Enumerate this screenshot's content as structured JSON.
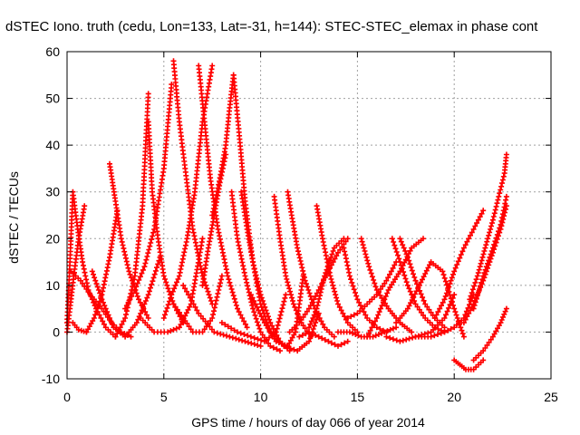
{
  "chart_data": {
    "type": "scatter",
    "title": "dSTEC Iono. truth (cedu, Lon=133, Lat=-31, h=144): STEC-STEC_elemax in phase cont",
    "xlabel": "GPS time / hours of day 066 of year 2014",
    "ylabel": "dSTEC  / TECUs",
    "xlim": [
      0,
      25
    ],
    "ylim": [
      -10,
      60
    ],
    "xticks": [
      0,
      5,
      10,
      15,
      20,
      25
    ],
    "yticks": [
      -10,
      0,
      10,
      20,
      30,
      40,
      50,
      60
    ],
    "grid": true,
    "marker": "+",
    "color": "#ff0000",
    "arcs": [
      {
        "x": [
          0.0,
          0.15,
          0.35,
          0.6,
          0.9
        ],
        "y": [
          0,
          5,
          12,
          20,
          27
        ]
      },
      {
        "x": [
          0.0,
          0.15,
          0.3,
          0.55,
          0.8,
          1.1,
          1.5,
          2.0,
          2.5
        ],
        "y": [
          2,
          15,
          30,
          22,
          15,
          9,
          5,
          1,
          -1
        ]
      },
      {
        "x": [
          0.2,
          0.7,
          1.2,
          1.8,
          2.3,
          2.8,
          3.3
        ],
        "y": [
          13,
          11,
          8,
          5,
          2,
          0,
          -1
        ]
      },
      {
        "x": [
          0.3,
          0.6,
          1.0
        ],
        "y": [
          2,
          0.5,
          0
        ]
      },
      {
        "x": [
          2.2,
          2.35,
          2.5,
          2.8,
          3.2,
          3.7,
          4.2
        ],
        "y": [
          36,
          32,
          28,
          20,
          13,
          7,
          3
        ]
      },
      {
        "x": [
          1.0,
          1.4,
          1.8,
          2.2,
          2.6
        ],
        "y": [
          0,
          3,
          8,
          16,
          26
        ]
      },
      {
        "x": [
          1.3,
          1.8,
          2.4,
          3.0,
          3.6,
          4.2,
          4.8
        ],
        "y": [
          13,
          7,
          1,
          -1,
          2,
          8,
          16
        ]
      },
      {
        "x": [
          2.5,
          3.0,
          3.5,
          3.9,
          4.2
        ],
        "y": [
          -1,
          3,
          12,
          27,
          51
        ]
      },
      {
        "x": [
          4.2,
          4.4,
          4.7,
          5.0,
          5.5,
          6.0
        ],
        "y": [
          45,
          30,
          20,
          12,
          6,
          2
        ]
      },
      {
        "x": [
          3.0,
          3.5,
          4.0,
          4.5,
          5.0,
          5.4
        ],
        "y": [
          5,
          9,
          14,
          22,
          35,
          53
        ]
      },
      {
        "x": [
          5.5,
          5.8,
          6.1,
          6.5,
          7.0,
          7.5
        ],
        "y": [
          58,
          45,
          35,
          22,
          12,
          6
        ]
      },
      {
        "x": [
          3.8,
          4.5,
          5.2,
          5.8,
          6.4,
          7.0
        ],
        "y": [
          3,
          0,
          0,
          1,
          6,
          20
        ]
      },
      {
        "x": [
          5.0,
          5.4,
          5.8,
          6.2,
          6.6,
          7.0,
          7.5
        ],
        "y": [
          3,
          8,
          12,
          20,
          30,
          45,
          57
        ]
      },
      {
        "x": [
          6.8,
          7.1,
          7.4,
          7.8,
          8.3,
          8.8,
          9.3
        ],
        "y": [
          57,
          45,
          33,
          22,
          12,
          5,
          1
        ]
      },
      {
        "x": [
          5.5,
          6.0,
          6.5,
          7.0,
          7.5,
          8.0
        ],
        "y": [
          6,
          3,
          0,
          0,
          3,
          12
        ]
      },
      {
        "x": [
          7.0,
          7.3,
          7.6,
          7.9,
          8.2
        ],
        "y": [
          10,
          18,
          25,
          32,
          38
        ]
      },
      {
        "x": [
          6.0,
          6.8,
          7.6,
          8.4,
          9.2,
          10.0
        ],
        "y": [
          10,
          4,
          0,
          -1,
          -2,
          -3
        ]
      },
      {
        "x": [
          7.5,
          7.9,
          8.2,
          8.4,
          8.6
        ],
        "y": [
          25,
          33,
          40,
          48,
          55
        ]
      },
      {
        "x": [
          8.6,
          8.9,
          9.2,
          9.6,
          10.0,
          10.5
        ],
        "y": [
          55,
          42,
          28,
          15,
          6,
          0
        ]
      },
      {
        "x": [
          8.5,
          8.8,
          9.2,
          9.6,
          10.0,
          10.5,
          11.0
        ],
        "y": [
          30,
          20,
          12,
          5,
          0,
          -3,
          -4
        ]
      },
      {
        "x": [
          9.0,
          9.3,
          9.6,
          10.0,
          10.5,
          11.0,
          11.5
        ],
        "y": [
          30,
          22,
          15,
          8,
          2,
          -2,
          -4
        ]
      },
      {
        "x": [
          8.0,
          8.8,
          9.5,
          10.2,
          10.8,
          11.3
        ],
        "y": [
          2,
          0,
          -1,
          -2,
          0,
          8
        ]
      },
      {
        "x": [
          9.5,
          10.2,
          10.8,
          11.4,
          11.8,
          12.2
        ],
        "y": [
          8,
          2,
          -2,
          -3,
          0,
          12
        ]
      },
      {
        "x": [
          10.7,
          11.0,
          11.3,
          11.7,
          12.1,
          12.6
        ],
        "y": [
          29,
          20,
          12,
          6,
          2,
          -1
        ]
      },
      {
        "x": [
          11.4,
          11.6,
          11.9,
          12.3,
          12.8,
          13.3,
          13.8
        ],
        "y": [
          30,
          25,
          18,
          11,
          5,
          1,
          -1
        ]
      },
      {
        "x": [
          10.5,
          11.2,
          11.9,
          12.5,
          13.0
        ],
        "y": [
          0,
          -3,
          -4,
          -2,
          4
        ]
      },
      {
        "x": [
          11.5,
          12.0,
          12.5,
          13.0,
          13.5,
          14.0,
          14.5
        ],
        "y": [
          0,
          2,
          5,
          9,
          13,
          17,
          20
        ]
      },
      {
        "x": [
          12.9,
          13.2,
          13.6,
          14.0,
          14.5,
          15.0
        ],
        "y": [
          27,
          20,
          12,
          6,
          2,
          0
        ]
      },
      {
        "x": [
          12.0,
          12.5,
          13.0,
          13.5,
          14.0,
          14.5
        ],
        "y": [
          -1,
          0,
          -1,
          -2,
          -3,
          -2
        ]
      },
      {
        "x": [
          12.5,
          12.9,
          13.3,
          13.8,
          14.3
        ],
        "y": [
          1,
          5,
          12,
          18,
          20
        ]
      },
      {
        "x": [
          14.3,
          14.6,
          15.0,
          15.5,
          16.0,
          16.5
        ],
        "y": [
          18,
          12,
          7,
          3,
          1,
          0
        ]
      },
      {
        "x": [
          14.0,
          14.6,
          15.2,
          15.8,
          16.4,
          17.0
        ],
        "y": [
          0,
          0,
          -1,
          -1,
          0,
          1
        ]
      },
      {
        "x": [
          15.2,
          15.6,
          16.0,
          16.6,
          17.2,
          17.8
        ],
        "y": [
          20,
          14,
          9,
          5,
          2,
          0
        ]
      },
      {
        "x": [
          14.5,
          15.0,
          15.5,
          16.0,
          16.5,
          17.0
        ],
        "y": [
          3,
          4,
          6,
          8,
          11,
          15
        ]
      },
      {
        "x": [
          15.5,
          16.0,
          16.6,
          17.2,
          17.8,
          18.4
        ],
        "y": [
          -1,
          3,
          9,
          13,
          18,
          20
        ]
      },
      {
        "x": [
          16.8,
          17.2,
          17.6,
          18.0,
          18.5,
          19.0,
          19.5
        ],
        "y": [
          20,
          15,
          10,
          6,
          3,
          1,
          0
        ]
      },
      {
        "x": [
          17.2,
          17.6,
          18.0,
          18.5,
          19.0,
          19.5
        ],
        "y": [
          20,
          16,
          11,
          6,
          3,
          1
        ]
      },
      {
        "x": [
          16.5,
          17.2,
          18.0,
          18.8,
          19.5,
          20.0
        ],
        "y": [
          -1,
          -2,
          -1,
          0,
          3,
          8
        ]
      },
      {
        "x": [
          17.0,
          17.6,
          18.2,
          18.8,
          19.4,
          20.0,
          20.5
        ],
        "y": [
          2,
          5,
          10,
          15,
          13,
          5,
          -1
        ]
      },
      {
        "x": [
          18.0,
          18.8,
          19.5,
          20.0,
          20.5,
          21.0
        ],
        "y": [
          -1,
          -1,
          0,
          1,
          3,
          8
        ]
      },
      {
        "x": [
          19.0,
          19.5,
          20.0,
          20.5,
          21.0,
          21.5
        ],
        "y": [
          3,
          7,
          13,
          18,
          22,
          26
        ]
      },
      {
        "x": [
          20.0,
          20.3,
          20.6,
          21.0,
          21.5
        ],
        "y": [
          -6,
          -7,
          -8,
          -8,
          -6
        ]
      },
      {
        "x": [
          21.0,
          21.5,
          22.0,
          22.4,
          22.7
        ],
        "y": [
          -6,
          -4,
          -1,
          2,
          5
        ]
      },
      {
        "x": [
          20.5,
          21.0,
          21.5,
          22.0,
          22.4,
          22.7
        ],
        "y": [
          2,
          6,
          11,
          17,
          22,
          27
        ]
      },
      {
        "x": [
          20.8,
          21.2,
          21.6,
          22.0,
          22.3,
          22.6,
          22.7
        ],
        "y": [
          7,
          12,
          18,
          24,
          29,
          34,
          38
        ]
      },
      {
        "x": [
          21.0,
          21.5,
          22.0,
          22.4,
          22.7
        ],
        "y": [
          5,
          12,
          18,
          23,
          29
        ]
      }
    ]
  }
}
